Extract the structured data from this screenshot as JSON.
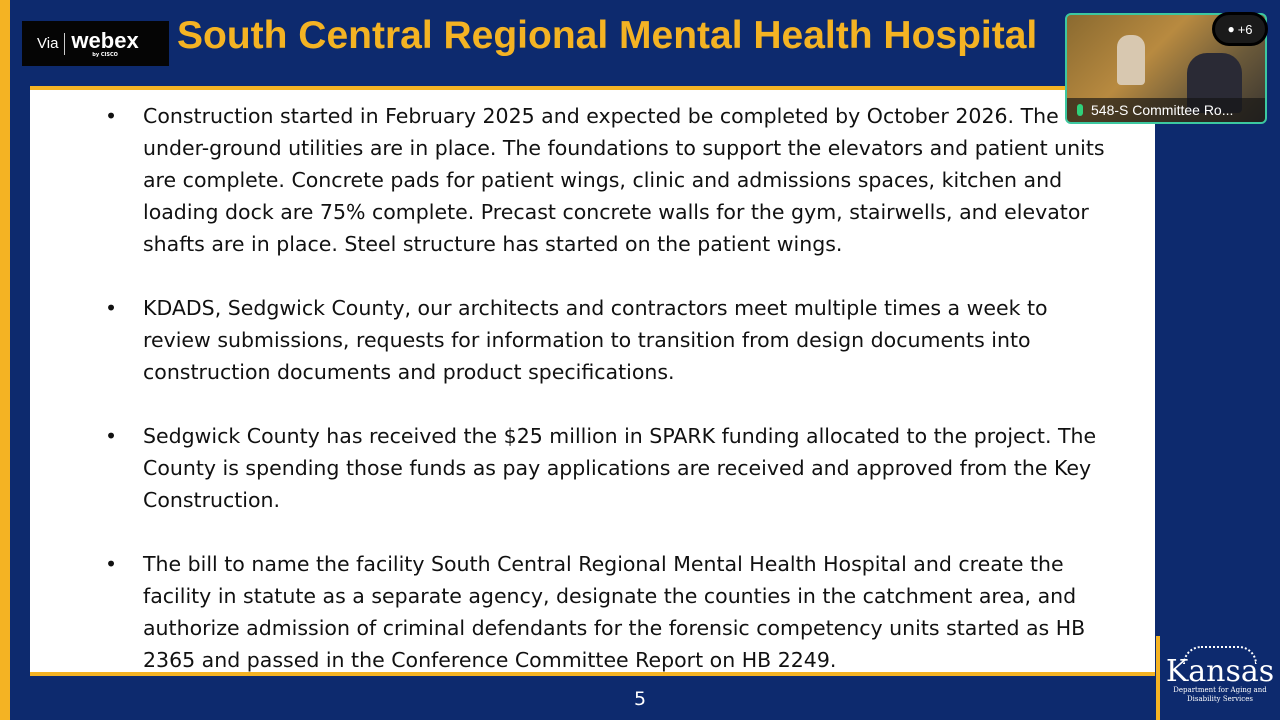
{
  "header": {
    "webex_badge": {
      "via": "Via",
      "brand": "webex",
      "by": "by CISCO"
    },
    "title": "South Central Regional Mental Health Hospital"
  },
  "slide": {
    "bullets": [
      "Construction started in February 2025 and expected be completed by October 2026. The under-ground utilities are in place. The foundations to support the elevators and patient units are complete.  Concrete pads for patient wings, clinic and admissions spaces, kitchen and loading dock are 75% complete. Precast concrete walls for the gym, stairwells, and elevator shafts are in place. Steel structure has started on the patient wings.",
      "KDADS, Sedgwick County, our architects and contractors meet multiple times a week to review submissions, requests for information to transition from design documents into construction documents and product specifications.",
      "Sedgwick County has received the $25 million in SPARK funding allocated to the project. The County is spending those funds as pay applications are received and approved from the Key Construction.",
      "The bill to name the facility South Central Regional Mental Health Hospital and create the facility in statute as a separate agency, designate the counties in the catchment area, and authorize admission of criminal defendants for the forensic competency units started as HB 2365 and passed in the Conference Committee Report on HB 2249."
    ],
    "bullet_glyph": "•",
    "page_number": "5"
  },
  "logo": {
    "name": "Kansas",
    "department": "Department for Aging and Disability Services"
  },
  "video": {
    "label": "548-S Committee Ro...",
    "participants_extra": "+6",
    "mic_color": "#2fd17a"
  },
  "colors": {
    "navy": "#0d2a6e",
    "gold": "#f4b323"
  }
}
